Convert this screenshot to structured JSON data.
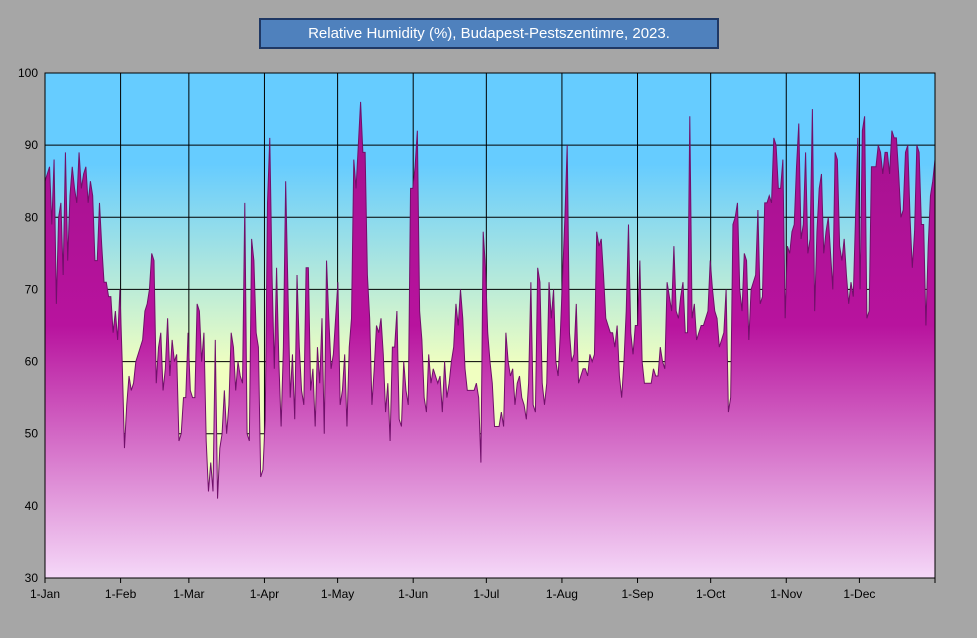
{
  "chart_data": {
    "type": "area",
    "title": "Relative Humidity (%), Budapest-Pestszentimre,  2023.",
    "ylim": [
      30,
      100
    ],
    "yticks": [
      30,
      40,
      50,
      60,
      70,
      80,
      90,
      100
    ],
    "xlim_days": [
      1,
      366
    ],
    "x_ticks": [
      {
        "label": "1-Jan",
        "day": 1
      },
      {
        "label": "1-Feb",
        "day": 32
      },
      {
        "label": "1-Mar",
        "day": 60
      },
      {
        "label": "1-Apr",
        "day": 91
      },
      {
        "label": "1-May",
        "day": 121
      },
      {
        "label": "1-Jun",
        "day": 152
      },
      {
        "label": "1-Jul",
        "day": 182
      },
      {
        "label": "1-Aug",
        "day": 213
      },
      {
        "label": "1-Sep",
        "day": 244
      },
      {
        "label": "1-Oct",
        "day": 274
      },
      {
        "label": "1-Nov",
        "day": 305
      },
      {
        "label": "1-Dec",
        "day": 335
      }
    ],
    "grid": true,
    "colors": {
      "series_fill_top": "#a0108a",
      "series_fill_bottom": "#f5d8f8",
      "series_line": "#70106a",
      "plot_bg_top": "#66ccff",
      "plot_bg_bottom": "#f0ffc0",
      "grid": "#000000"
    },
    "series": [
      {
        "values": [
          85,
          86,
          87,
          79,
          88,
          68,
          80,
          82,
          72,
          89,
          74,
          83,
          87,
          84,
          82,
          89,
          84,
          86,
          87,
          82,
          85,
          83,
          74,
          74,
          82,
          76,
          71,
          71,
          69,
          69,
          64,
          67,
          63,
          70,
          60,
          48,
          54,
          58,
          56,
          57,
          60,
          61,
          62,
          63,
          67,
          68,
          70,
          75,
          74,
          57,
          62,
          64,
          56,
          59,
          66,
          58,
          63,
          60,
          61,
          49,
          50,
          55,
          55,
          64,
          56,
          55,
          55,
          68,
          67,
          60,
          64,
          49,
          42,
          46,
          42,
          63,
          41,
          48,
          50,
          56,
          50,
          54,
          64,
          62,
          56,
          60,
          58,
          57,
          82,
          50,
          49,
          77,
          74,
          64,
          62,
          44,
          45,
          52,
          82,
          91,
          72,
          59,
          73,
          60,
          51,
          62,
          85,
          70,
          55,
          61,
          52,
          72,
          62,
          56,
          54,
          73,
          73,
          56,
          59,
          51,
          62,
          57,
          66,
          50,
          74,
          66,
          59,
          61,
          66,
          71,
          54,
          56,
          61,
          51,
          62,
          66,
          88,
          84,
          90,
          96,
          89,
          89,
          72,
          66,
          54,
          59,
          65,
          64,
          66,
          61,
          53,
          57,
          49,
          62,
          62,
          67,
          52,
          51,
          60,
          56,
          54,
          84,
          84,
          87,
          92,
          67,
          63,
          55,
          53,
          61,
          57,
          59,
          58,
          57,
          58,
          53,
          60,
          55,
          57,
          60,
          62,
          68,
          65,
          70,
          66,
          59,
          56,
          56,
          56,
          56,
          57,
          55,
          46,
          78,
          73,
          64,
          60,
          57,
          51,
          51,
          51,
          53,
          51,
          64,
          60,
          58,
          59,
          54,
          57,
          58,
          55,
          54,
          52,
          57,
          71,
          54,
          53,
          73,
          71,
          57,
          54,
          57,
          71,
          66,
          70,
          60,
          58,
          64,
          72,
          80,
          90,
          64,
          60,
          61,
          68,
          57,
          58,
          59,
          59,
          58,
          61,
          60,
          61,
          78,
          76,
          77,
          72,
          66,
          65,
          64,
          64,
          62,
          65,
          58,
          55,
          60,
          67,
          79,
          64,
          61,
          65,
          65,
          74,
          60,
          57,
          57,
          57,
          57,
          59,
          58,
          58,
          62,
          60,
          59,
          71,
          69,
          67,
          76,
          67,
          66,
          69,
          71,
          64,
          64,
          94,
          66,
          68,
          63,
          64,
          65,
          65,
          66,
          67,
          74,
          70,
          67,
          66,
          62,
          63,
          64,
          70,
          53,
          55,
          79,
          80,
          82,
          70,
          67,
          75,
          74,
          63,
          70,
          71,
          72,
          81,
          68,
          69,
          82,
          82,
          83,
          82,
          91,
          90,
          84,
          84,
          88,
          66,
          76,
          75,
          78,
          79,
          87,
          93,
          77,
          79,
          89,
          75,
          77,
          95,
          67,
          78,
          84,
          86,
          75,
          78,
          80,
          75,
          70,
          89,
          88,
          76,
          74,
          77,
          72,
          68,
          71,
          69,
          80,
          91,
          70,
          92,
          94,
          66,
          67,
          87,
          87,
          87,
          90,
          89,
          86,
          89,
          89,
          86,
          92,
          91,
          91,
          86,
          80,
          81,
          89,
          90,
          80,
          73,
          78,
          90,
          89,
          79,
          79,
          65,
          76,
          83,
          85,
          88
        ]
      }
    ]
  }
}
